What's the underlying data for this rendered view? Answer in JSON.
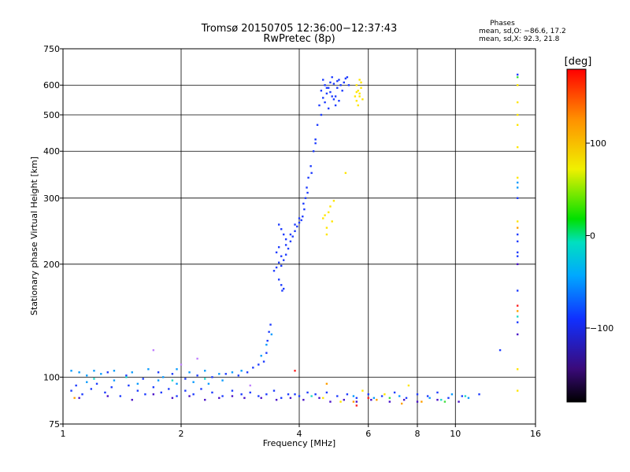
{
  "chart_data": {
    "type": "scatter",
    "title": "Tromsø 20150705 12:36:00−12:37:43",
    "subtitle": "RwPretec (8p)",
    "phase_box": {
      "title": "Phases",
      "line1": "mean, sd,O: −86.6, 17.2",
      "line2": "mean, sd,X:  92.3, 21.8"
    },
    "xlabel": "Frequency [MHz]",
    "ylabel": "Stationary phase Virtual Height [km]",
    "x_scale": "log",
    "y_scale": "log",
    "xlim": [
      1,
      16
    ],
    "ylim": [
      75,
      750
    ],
    "x_ticks": [
      {
        "value": 1,
        "label": "1"
      },
      {
        "value": 2,
        "label": "2"
      },
      {
        "value": 4,
        "label": "4"
      },
      {
        "value": 6,
        "label": "6"
      },
      {
        "value": 8,
        "label": "8"
      },
      {
        "value": 10,
        "label": "10"
      },
      {
        "value": 16,
        "label": "16"
      }
    ],
    "y_ticks": [
      {
        "value": 75,
        "label": "75"
      },
      {
        "value": 100,
        "label": "100"
      },
      {
        "value": 200,
        "label": "200"
      },
      {
        "value": 300,
        "label": "300"
      },
      {
        "value": 400,
        "label": "400"
      },
      {
        "value": 500,
        "label": "500"
      },
      {
        "value": 600,
        "label": "600"
      },
      {
        "value": 750,
        "label": "750"
      }
    ],
    "grid": true,
    "colorbar": {
      "label": "[deg]",
      "range": [
        -180,
        180
      ],
      "ticks": [
        {
          "value": 100,
          "label": "100"
        },
        {
          "value": 0,
          "label": "0"
        },
        {
          "value": -100,
          "label": "−100"
        }
      ]
    },
    "series": [
      {
        "color": "#1e3cff",
        "points": [
          [
            1.05,
            92
          ],
          [
            1.08,
            95
          ],
          [
            1.12,
            90
          ],
          [
            1.18,
            93
          ],
          [
            1.22,
            96
          ],
          [
            1.28,
            91
          ],
          [
            1.33,
            94
          ],
          [
            1.4,
            89
          ],
          [
            1.47,
            95
          ],
          [
            1.55,
            92
          ],
          [
            1.62,
            90
          ],
          [
            1.7,
            94
          ],
          [
            1.78,
            91
          ],
          [
            1.86,
            93
          ],
          [
            1.95,
            89
          ],
          [
            2.05,
            92
          ],
          [
            2.15,
            90
          ],
          [
            2.25,
            93
          ],
          [
            2.4,
            91
          ],
          [
            2.55,
            89
          ],
          [
            2.7,
            92
          ],
          [
            2.85,
            90
          ],
          [
            3.0,
            91
          ],
          [
            3.15,
            89
          ],
          [
            3.3,
            90
          ],
          [
            3.45,
            92
          ],
          [
            3.6,
            88
          ],
          [
            3.75,
            90
          ],
          [
            1.3,
            103
          ],
          [
            1.45,
            101
          ],
          [
            1.6,
            99
          ],
          [
            1.75,
            103
          ],
          [
            1.9,
            102
          ],
          [
            2.05,
            99
          ],
          [
            2.2,
            101
          ],
          [
            2.4,
            100
          ],
          [
            2.6,
            102
          ],
          [
            2.8,
            101
          ],
          [
            2.95,
            103
          ],
          [
            3.05,
            106
          ],
          [
            3.15,
            108
          ],
          [
            3.25,
            110
          ],
          [
            3.3,
            116
          ],
          [
            3.32,
            125
          ],
          [
            3.35,
            132
          ],
          [
            3.38,
            138
          ],
          [
            3.45,
            192
          ],
          [
            3.5,
            196
          ],
          [
            3.55,
            202
          ],
          [
            3.6,
            198
          ],
          [
            3.65,
            205
          ],
          [
            3.7,
            212
          ],
          [
            3.75,
            220
          ],
          [
            3.8,
            230
          ],
          [
            3.85,
            237
          ],
          [
            3.9,
            245
          ],
          [
            3.95,
            252
          ],
          [
            4.0,
            258
          ],
          [
            4.05,
            262
          ],
          [
            4.08,
            268
          ],
          [
            4.12,
            280
          ],
          [
            4.15,
            300
          ],
          [
            4.18,
            320
          ],
          [
            4.22,
            340
          ],
          [
            4.28,
            365
          ],
          [
            4.35,
            400
          ],
          [
            4.4,
            430
          ],
          [
            4.45,
            470
          ],
          [
            4.5,
            530
          ],
          [
            4.55,
            580
          ],
          [
            4.6,
            620
          ],
          [
            4.65,
            600
          ],
          [
            4.7,
            570
          ],
          [
            4.75,
            590
          ],
          [
            4.8,
            610
          ],
          [
            4.85,
            630
          ],
          [
            4.9,
            550
          ],
          [
            4.95,
            560
          ],
          [
            5.0,
            590
          ],
          [
            5.05,
            620
          ],
          [
            5.1,
            600
          ],
          [
            5.15,
            580
          ],
          [
            5.2,
            610
          ],
          [
            5.25,
            625
          ],
          [
            5.3,
            630
          ],
          [
            5.35,
            600
          ],
          [
            4.65,
            540
          ],
          [
            4.75,
            520
          ],
          [
            4.85,
            560
          ],
          [
            4.95,
            530
          ],
          [
            5.05,
            545
          ],
          [
            3.55,
            255
          ],
          [
            3.6,
            248
          ],
          [
            3.65,
            240
          ],
          [
            3.7,
            233
          ],
          [
            3.55,
            182
          ],
          [
            3.6,
            176
          ],
          [
            3.65,
            172
          ],
          [
            3.62,
            170
          ],
          [
            3.5,
            215
          ],
          [
            3.55,
            222
          ],
          [
            3.6,
            210
          ],
          [
            3.7,
            225
          ],
          [
            3.8,
            240
          ],
          [
            3.9,
            255
          ],
          [
            4.0,
            265
          ],
          [
            4.1,
            290
          ],
          [
            4.2,
            310
          ],
          [
            4.3,
            350
          ],
          [
            4.4,
            420
          ],
          [
            4.55,
            500
          ],
          [
            4.6,
            555
          ],
          [
            4.7,
            590
          ],
          [
            4.8,
            575
          ],
          [
            4.9,
            605
          ],
          [
            5.0,
            615
          ],
          [
            3.9,
            90
          ],
          [
            4.0,
            89
          ],
          [
            4.2,
            91
          ],
          [
            4.4,
            90
          ],
          [
            4.7,
            91
          ],
          [
            5.0,
            89
          ],
          [
            5.3,
            90
          ],
          [
            5.6,
            88
          ],
          [
            6.0,
            90
          ],
          [
            6.5,
            89
          ],
          [
            7.0,
            91
          ],
          [
            7.5,
            88
          ],
          [
            8.0,
            90
          ],
          [
            8.5,
            89
          ],
          [
            9.0,
            91
          ],
          [
            9.6,
            88
          ],
          [
            10.4,
            89
          ],
          [
            11.5,
            90
          ],
          [
            13.0,
            118
          ],
          [
            14.4,
            230
          ],
          [
            14.4,
            300
          ],
          [
            14.4,
            240
          ],
          [
            14.4,
            215
          ],
          [
            14.4,
            170
          ],
          [
            14.4,
            140
          ],
          [
            14.4,
            210
          ],
          [
            14.4,
            640
          ]
        ]
      },
      {
        "color": "#0a9cff",
        "points": [
          [
            1.05,
            104
          ],
          [
            1.1,
            103
          ],
          [
            1.15,
            101
          ],
          [
            1.2,
            104
          ],
          [
            1.25,
            102
          ],
          [
            1.35,
            104
          ],
          [
            1.5,
            103
          ],
          [
            1.65,
            105
          ],
          [
            1.8,
            100
          ],
          [
            1.95,
            105
          ],
          [
            2.1,
            103
          ],
          [
            2.3,
            104
          ],
          [
            2.5,
            102
          ],
          [
            2.7,
            103
          ],
          [
            2.85,
            104
          ],
          [
            1.15,
            97
          ],
          [
            1.35,
            98
          ],
          [
            1.55,
            96
          ],
          [
            1.75,
            98
          ],
          [
            1.95,
            96
          ],
          [
            2.15,
            97
          ],
          [
            2.35,
            96
          ],
          [
            2.55,
            98
          ],
          [
            3.4,
            130
          ],
          [
            3.3,
            122
          ],
          [
            3.2,
            114
          ],
          [
            5.5,
            89
          ],
          [
            6.2,
            88
          ],
          [
            7.2,
            89
          ],
          [
            8.6,
            88
          ],
          [
            9.8,
            90
          ],
          [
            10.8,
            88
          ],
          [
            14.4,
            320
          ],
          [
            14.4,
            330
          ]
        ]
      },
      {
        "color": "#4a12c8",
        "points": [
          [
            1.1,
            88
          ],
          [
            1.3,
            89
          ],
          [
            1.5,
            87
          ],
          [
            1.7,
            90
          ],
          [
            1.9,
            88
          ],
          [
            2.1,
            89
          ],
          [
            2.3,
            87
          ],
          [
            2.5,
            88
          ],
          [
            2.7,
            89
          ],
          [
            2.9,
            88
          ],
          [
            3.2,
            88
          ],
          [
            3.5,
            87
          ],
          [
            3.8,
            88
          ],
          [
            4.1,
            87
          ],
          [
            4.5,
            88
          ],
          [
            4.8,
            86
          ],
          [
            5.2,
            87
          ],
          [
            5.6,
            86
          ],
          [
            6.1,
            87
          ],
          [
            6.8,
            86
          ],
          [
            7.4,
            87
          ],
          [
            8.0,
            86
          ],
          [
            9.0,
            87
          ],
          [
            10.2,
            86
          ],
          [
            14.4,
            200
          ],
          [
            14.4,
            130
          ]
        ]
      },
      {
        "color": "#ffe600",
        "points": [
          [
            5.6,
            600
          ],
          [
            5.65,
            580
          ],
          [
            5.7,
            560
          ],
          [
            5.75,
            590
          ],
          [
            5.6,
            545
          ],
          [
            5.65,
            530
          ],
          [
            5.7,
            570
          ],
          [
            5.75,
            610
          ],
          [
            5.55,
            560
          ],
          [
            5.8,
            550
          ],
          [
            5.7,
            620
          ],
          [
            5.6,
            575
          ],
          [
            4.6,
            265
          ],
          [
            4.65,
            270
          ],
          [
            4.7,
            250
          ],
          [
            4.75,
            275
          ],
          [
            4.8,
            285
          ],
          [
            4.85,
            260
          ],
          [
            4.9,
            295
          ],
          [
            4.7,
            240
          ],
          [
            5.25,
            350
          ],
          [
            14.4,
            600
          ],
          [
            14.4,
            540
          ],
          [
            14.4,
            500
          ],
          [
            14.4,
            470
          ],
          [
            14.4,
            410
          ],
          [
            14.4,
            340
          ],
          [
            14.4,
            260
          ],
          [
            14.4,
            105
          ],
          [
            14.4,
            92
          ],
          [
            6.6,
            90
          ],
          [
            7.6,
            95
          ],
          [
            5.8,
            92
          ],
          [
            5.1,
            86
          ],
          [
            4.6,
            88
          ]
        ]
      },
      {
        "color": "#ffa000",
        "points": [
          [
            1.07,
            88
          ],
          [
            4.7,
            96
          ],
          [
            5.5,
            86
          ],
          [
            6.3,
            87
          ],
          [
            7.3,
            85
          ],
          [
            8.2,
            86
          ],
          [
            14.4,
            250
          ],
          [
            14.4,
            150
          ]
        ]
      },
      {
        "color": "#ff2020",
        "points": [
          [
            3.9,
            104
          ],
          [
            5.6,
            84
          ],
          [
            6.0,
            88
          ],
          [
            14.4,
            155
          ]
        ]
      },
      {
        "color": "#20d8c8",
        "points": [
          [
            1.2,
            99
          ],
          [
            1.45,
            100
          ],
          [
            1.9,
            98
          ],
          [
            2.3,
            99
          ],
          [
            4.3,
            89
          ],
          [
            9.2,
            87
          ],
          [
            10.6,
            89
          ],
          [
            14.4,
            145
          ]
        ]
      },
      {
        "color": "#40e040",
        "points": [
          [
            6.8,
            88
          ],
          [
            9.4,
            86
          ],
          [
            14.4,
            630
          ]
        ]
      },
      {
        "color": "#c080ff",
        "points": [
          [
            1.7,
            118
          ],
          [
            2.2,
            112
          ],
          [
            2.0,
            108
          ],
          [
            3.0,
            95
          ]
        ]
      }
    ]
  }
}
